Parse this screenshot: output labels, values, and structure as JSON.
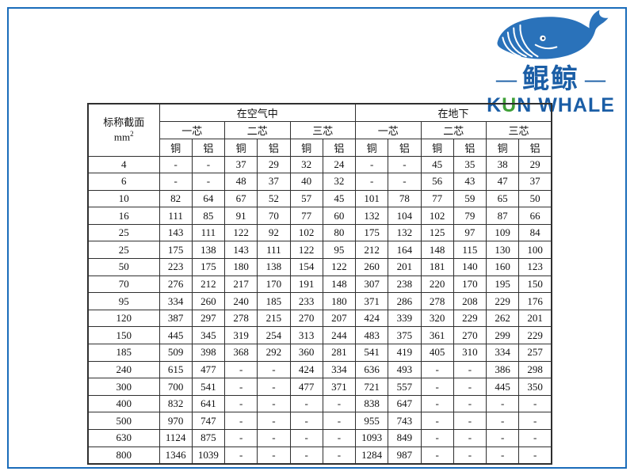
{
  "frame": {
    "color": "#1a6cba"
  },
  "logo": {
    "whale_color": "#2a72ba",
    "cn_dash_left": "—",
    "cn_name": "鲲鲸",
    "cn_dash_right": "—",
    "en_first": "K",
    "en_accent": "U",
    "en_rest": "N WHALE",
    "blue": "#1b5ea6",
    "green": "#3fa037"
  },
  "table": {
    "corner": {
      "line1": "标称截面",
      "unit": "mm",
      "sup": "2"
    },
    "group_headers": [
      "在空气中",
      "在地下"
    ],
    "core_headers": [
      "一芯",
      "二芯",
      "三芯",
      "一芯",
      "二芯",
      "三芯"
    ],
    "material_headers": [
      "铜",
      "铝",
      "铜",
      "铝",
      "铜",
      "铝",
      "铜",
      "铝",
      "铜",
      "铝",
      "铜",
      "铝"
    ],
    "rows": [
      {
        "size": "4",
        "values": [
          "-",
          "-",
          "37",
          "29",
          "32",
          "24",
          "-",
          "-",
          "45",
          "35",
          "38",
          "29"
        ]
      },
      {
        "size": "6",
        "values": [
          "-",
          "-",
          "48",
          "37",
          "40",
          "32",
          "-",
          "-",
          "56",
          "43",
          "47",
          "37"
        ]
      },
      {
        "size": "10",
        "values": [
          "82",
          "64",
          "67",
          "52",
          "57",
          "45",
          "101",
          "78",
          "77",
          "59",
          "65",
          "50"
        ]
      },
      {
        "size": "16",
        "values": [
          "111",
          "85",
          "91",
          "70",
          "77",
          "60",
          "132",
          "104",
          "102",
          "79",
          "87",
          "66"
        ]
      },
      {
        "size": "25",
        "values": [
          "143",
          "111",
          "122",
          "92",
          "102",
          "80",
          "175",
          "132",
          "125",
          "97",
          "109",
          "84"
        ]
      },
      {
        "size": "25",
        "values": [
          "175",
          "138",
          "143",
          "111",
          "122",
          "95",
          "212",
          "164",
          "148",
          "115",
          "130",
          "100"
        ]
      },
      {
        "size": "50",
        "values": [
          "223",
          "175",
          "180",
          "138",
          "154",
          "122",
          "260",
          "201",
          "181",
          "140",
          "160",
          "123"
        ]
      },
      {
        "size": "70",
        "values": [
          "276",
          "212",
          "217",
          "170",
          "191",
          "148",
          "307",
          "238",
          "220",
          "170",
          "195",
          "150"
        ]
      },
      {
        "size": "95",
        "values": [
          "334",
          "260",
          "240",
          "185",
          "233",
          "180",
          "371",
          "286",
          "278",
          "208",
          "229",
          "176"
        ]
      },
      {
        "size": "120",
        "values": [
          "387",
          "297",
          "278",
          "215",
          "270",
          "207",
          "424",
          "339",
          "320",
          "229",
          "262",
          "201"
        ]
      },
      {
        "size": "150",
        "values": [
          "445",
          "345",
          "319",
          "254",
          "313",
          "244",
          "483",
          "375",
          "361",
          "270",
          "299",
          "229"
        ]
      },
      {
        "size": "185",
        "values": [
          "509",
          "398",
          "368",
          "292",
          "360",
          "281",
          "541",
          "419",
          "405",
          "310",
          "334",
          "257"
        ]
      },
      {
        "size": "240",
        "values": [
          "615",
          "477",
          "-",
          "-",
          "424",
          "334",
          "636",
          "493",
          "-",
          "-",
          "386",
          "298"
        ]
      },
      {
        "size": "300",
        "values": [
          "700",
          "541",
          "-",
          "-",
          "477",
          "371",
          "721",
          "557",
          "-",
          "-",
          "445",
          "350"
        ]
      },
      {
        "size": "400",
        "values": [
          "832",
          "641",
          "-",
          "-",
          "-",
          "-",
          "838",
          "647",
          "-",
          "-",
          "-",
          "-"
        ]
      },
      {
        "size": "500",
        "values": [
          "970",
          "747",
          "-",
          "-",
          "-",
          "-",
          "955",
          "743",
          "-",
          "-",
          "-",
          "-"
        ]
      },
      {
        "size": "630",
        "values": [
          "1124",
          "875",
          "-",
          "-",
          "-",
          "-",
          "1093",
          "849",
          "-",
          "-",
          "-",
          "-"
        ]
      },
      {
        "size": "800",
        "values": [
          "1346",
          "1039",
          "-",
          "-",
          "-",
          "-",
          "1284",
          "987",
          "-",
          "-",
          "-",
          "-"
        ]
      }
    ]
  }
}
